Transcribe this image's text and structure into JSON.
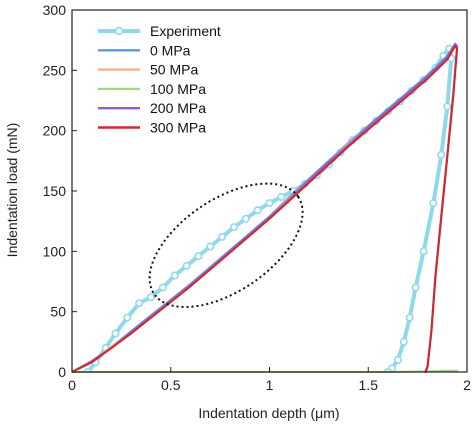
{
  "chart_data": {
    "type": "line",
    "title": "",
    "xlabel": "Indentation depth (μm)",
    "ylabel": "Indentation load (mN)",
    "xlim": [
      0,
      2
    ],
    "ylim": [
      0,
      300
    ],
    "x_ticks": [
      "0",
      "0.5",
      "1",
      "1.5",
      "2"
    ],
    "y_ticks": [
      "0",
      "50",
      "100",
      "150",
      "200",
      "250",
      "300"
    ],
    "grid": false,
    "legend_position": "top-left",
    "series": [
      {
        "name": "Experiment",
        "color": "#8fd9ea",
        "marker": "circle",
        "x": [
          0.08,
          0.12,
          0.17,
          0.22,
          0.28,
          0.34,
          0.4,
          0.46,
          0.52,
          0.58,
          0.64,
          0.7,
          0.76,
          0.82,
          0.88,
          0.94,
          1.0,
          1.06,
          1.12,
          1.18,
          1.24,
          1.3,
          1.36,
          1.42,
          1.48,
          1.54,
          1.6,
          1.66,
          1.72,
          1.78,
          1.84,
          1.88,
          1.91,
          1.92,
          1.9,
          1.87,
          1.83,
          1.78,
          1.74,
          1.71,
          1.68,
          1.65,
          1.62,
          1.6
        ],
        "y": [
          0,
          8,
          20,
          32,
          45,
          57,
          62,
          70,
          80,
          88,
          96,
          104,
          112,
          120,
          127,
          134,
          140,
          145,
          150,
          156,
          163,
          172,
          182,
          192,
          200,
          208,
          216,
          224,
          233,
          242,
          252,
          262,
          268,
          260,
          220,
          180,
          140,
          100,
          70,
          45,
          25,
          10,
          3,
          0
        ]
      },
      {
        "name": "0 MPa",
        "color": "#5b9bd5",
        "marker": "none",
        "x": [
          0.0,
          0.1,
          0.2,
          0.3,
          0.4,
          0.5,
          0.6,
          0.7,
          0.8,
          0.9,
          1.0,
          1.1,
          1.2,
          1.3,
          1.4,
          1.5,
          1.6,
          1.7,
          1.8,
          1.9,
          1.94,
          1.95,
          1.93,
          1.9,
          1.87,
          1.84,
          1.82,
          1.8,
          1.79
        ],
        "y": [
          0,
          9,
          21,
          34,
          47,
          60,
          73,
          87,
          101,
          115,
          129,
          145,
          160,
          175,
          190,
          204,
          218,
          232,
          246,
          262,
          272,
          270,
          230,
          180,
          130,
          80,
          35,
          5,
          0
        ]
      },
      {
        "name": "50 MPa",
        "color": "#f4b183",
        "marker": "none",
        "x": [
          0.0,
          0.1,
          0.2,
          0.3,
          0.4,
          0.5,
          0.6,
          0.7,
          0.8,
          0.9,
          1.0,
          1.1,
          1.2,
          1.3,
          1.4,
          1.5,
          1.6,
          1.7,
          1.8,
          1.9,
          1.94,
          1.95,
          1.93,
          1.9,
          1.87,
          1.84,
          1.82,
          1.8,
          1.79
        ],
        "y": [
          0,
          9,
          21,
          33,
          46,
          59,
          72,
          86,
          100,
          114,
          128,
          144,
          159,
          174,
          189,
          203,
          217,
          231,
          245,
          261,
          271,
          269,
          229,
          179,
          129,
          79,
          34,
          4,
          0
        ]
      },
      {
        "name": "100 MPa",
        "color": "#a9d18e",
        "marker": "none",
        "x": [
          0.0,
          0.2,
          0.4,
          0.6,
          0.8,
          1.0,
          1.2,
          1.4,
          1.6,
          1.8,
          1.9,
          1.95
        ],
        "y": [
          0,
          0,
          0,
          0,
          0,
          0,
          0,
          0,
          0,
          0.5,
          1,
          1
        ]
      },
      {
        "name": "200 MPa",
        "color": "#8e5ed6",
        "marker": "none",
        "x": [
          0.0,
          0.1,
          0.2,
          0.3,
          0.4,
          0.5,
          0.6,
          0.7,
          0.8,
          0.9,
          1.0,
          1.1,
          1.2,
          1.3,
          1.4,
          1.5,
          1.6,
          1.7,
          1.8,
          1.9,
          1.94,
          1.95,
          1.93,
          1.9,
          1.87,
          1.84,
          1.82,
          1.8,
          1.79
        ],
        "y": [
          0,
          9,
          20,
          33,
          46,
          59,
          72,
          86,
          100,
          114,
          128,
          143,
          159,
          174,
          188,
          203,
          217,
          231,
          245,
          261,
          272,
          270,
          230,
          180,
          130,
          80,
          35,
          5,
          0
        ]
      },
      {
        "name": "300 MPa",
        "color": "#d62728",
        "marker": "none",
        "x": [
          0.0,
          0.1,
          0.2,
          0.3,
          0.4,
          0.5,
          0.6,
          0.7,
          0.8,
          0.9,
          1.0,
          1.1,
          1.2,
          1.3,
          1.4,
          1.5,
          1.6,
          1.7,
          1.8,
          1.9,
          1.94,
          1.95,
          1.93,
          1.9,
          1.87,
          1.84,
          1.82,
          1.8,
          1.79
        ],
        "y": [
          0,
          8,
          20,
          32,
          45,
          58,
          71,
          85,
          99,
          113,
          127,
          142,
          157,
          172,
          187,
          201,
          215,
          229,
          243,
          259,
          270,
          268,
          228,
          178,
          128,
          78,
          33,
          4,
          0
        ]
      }
    ],
    "annotations": [
      {
        "type": "dotted-ellipse",
        "center": [
          0.78,
          105
        ],
        "radius_x": 0.44,
        "radius_y": 38,
        "rotation_deg": -34,
        "color": "#111111"
      }
    ]
  }
}
